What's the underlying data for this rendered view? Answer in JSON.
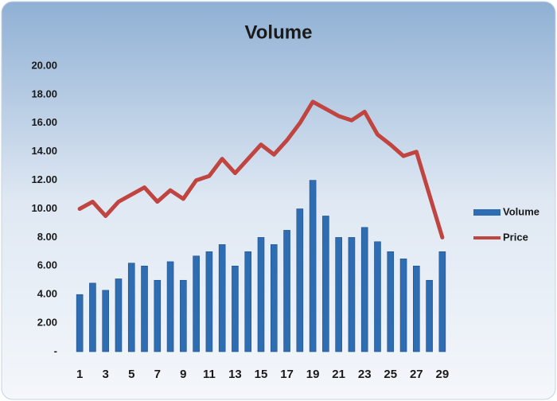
{
  "chart_data": {
    "type": "bar-line",
    "title": "Volume",
    "categories": [
      "1",
      null,
      "3",
      null,
      "5",
      null,
      "7",
      null,
      "9",
      null,
      "11",
      null,
      "13",
      null,
      "15",
      null,
      "17",
      null,
      "19",
      null,
      "21",
      null,
      "23",
      null,
      "25",
      null,
      "27",
      null,
      "29"
    ],
    "series": [
      {
        "name": "Volume",
        "type": "bar",
        "color": "#2f6db3",
        "values": [
          4.0,
          4.8,
          4.3,
          5.1,
          6.2,
          6.0,
          5.0,
          6.3,
          5.0,
          6.7,
          7.0,
          7.5,
          6.0,
          7.0,
          8.0,
          7.5,
          8.5,
          10.0,
          12.0,
          9.5,
          8.0,
          8.0,
          8.7,
          7.7,
          7.0,
          6.5,
          6.0,
          5.0,
          7.0
        ]
      },
      {
        "name": "Price",
        "type": "line",
        "color": "#c0443f",
        "values": [
          10.0,
          10.5,
          9.5,
          10.5,
          11.0,
          11.5,
          10.5,
          11.3,
          10.7,
          12.0,
          12.3,
          13.5,
          12.5,
          13.5,
          14.5,
          13.8,
          14.8,
          16.0,
          17.5,
          17.0,
          16.5,
          16.2,
          16.8,
          15.2,
          14.5,
          13.7,
          14.0,
          11.0,
          8.0
        ]
      }
    ],
    "ylim": [
      0,
      20
    ],
    "yticks": [
      {
        "value": 0,
        "label": "-"
      },
      {
        "value": 2,
        "label": "2.00"
      },
      {
        "value": 4,
        "label": "4.00"
      },
      {
        "value": 6,
        "label": "6.00"
      },
      {
        "value": 8,
        "label": "8.00"
      },
      {
        "value": 10,
        "label": "10.00"
      },
      {
        "value": 12,
        "label": "12.00"
      },
      {
        "value": 14,
        "label": "14.00"
      },
      {
        "value": 16,
        "label": "16.00"
      },
      {
        "value": 18,
        "label": "18.00"
      },
      {
        "value": 20,
        "label": "20.00"
      }
    ],
    "legend": "right"
  }
}
